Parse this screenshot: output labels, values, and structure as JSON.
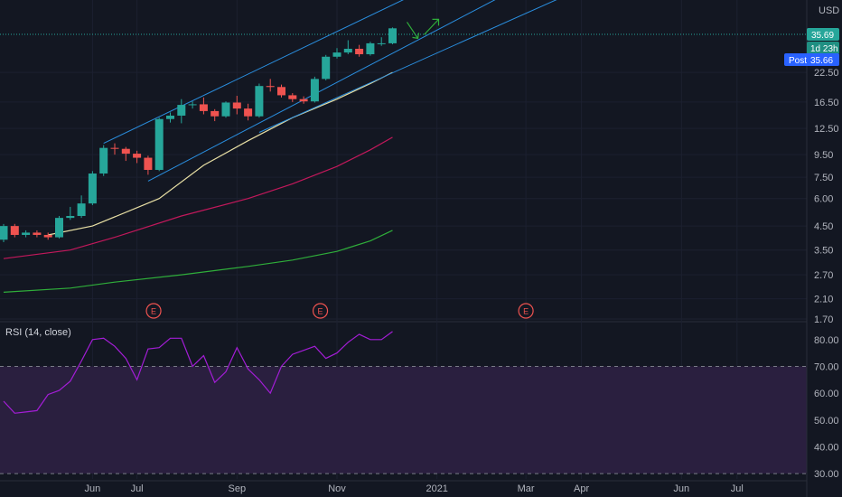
{
  "currency": "USD",
  "price_labels": {
    "last": "35.69",
    "countdown": "1d 23h",
    "post_prefix": "Post",
    "post_value": "35.66"
  },
  "earnings_marker": "E",
  "rsi_label": "RSI (14, close)",
  "colors": {
    "background": "#131722",
    "up": "#26a69a",
    "down": "#ef5350",
    "channel": "#2a8fe0",
    "ma_short": "#e8dfa4",
    "ma_mid": "#c2185b",
    "ma_long": "#2fae3a",
    "rsi_line": "#a31dd6",
    "rsi_band": "#2a1f3f"
  },
  "chart_data": [
    {
      "type": "candlestick",
      "scale": "log",
      "ylim": [
        1.7,
        48
      ],
      "y_ticks": [
        "1.70",
        "2.10",
        "2.70",
        "3.50",
        "4.50",
        "6.00",
        "7.50",
        "9.50",
        "12.50",
        "16.50",
        "22.50"
      ],
      "x_ticks": [
        "Jun",
        "Jul",
        "Sep",
        "Nov",
        "2021",
        "Mar",
        "Apr",
        "Jun",
        "Jul"
      ],
      "x_tick_weeks": [
        8,
        12,
        21,
        30,
        39,
        47,
        52,
        61,
        66
      ],
      "candles": [
        {
          "week": 0,
          "open": 3.9,
          "high": 4.6,
          "low": 3.8,
          "close": 4.5
        },
        {
          "week": 1,
          "open": 4.5,
          "high": 4.6,
          "low": 4.0,
          "close": 4.1
        },
        {
          "week": 2,
          "open": 4.1,
          "high": 4.3,
          "low": 4.0,
          "close": 4.2
        },
        {
          "week": 3,
          "open": 4.2,
          "high": 4.3,
          "low": 4.0,
          "close": 4.1
        },
        {
          "week": 4,
          "open": 4.1,
          "high": 4.2,
          "low": 3.9,
          "close": 4.0
        },
        {
          "week": 5,
          "open": 4.0,
          "high": 5.0,
          "low": 3.95,
          "close": 4.9
        },
        {
          "week": 6,
          "open": 4.9,
          "high": 5.5,
          "low": 4.8,
          "close": 5.0
        },
        {
          "week": 7,
          "open": 5.0,
          "high": 6.2,
          "low": 4.9,
          "close": 5.7
        },
        {
          "week": 8,
          "open": 5.7,
          "high": 8.0,
          "low": 5.6,
          "close": 7.8
        },
        {
          "week": 9,
          "open": 7.8,
          "high": 10.5,
          "low": 7.6,
          "close": 10.2
        },
        {
          "week": 10,
          "open": 10.2,
          "high": 10.7,
          "low": 9.5,
          "close": 10.1
        },
        {
          "week": 11,
          "open": 10.1,
          "high": 10.3,
          "low": 8.9,
          "close": 9.6
        },
        {
          "week": 12,
          "open": 9.6,
          "high": 9.9,
          "low": 8.7,
          "close": 9.2
        },
        {
          "week": 13,
          "open": 9.2,
          "high": 9.4,
          "low": 7.7,
          "close": 8.1
        },
        {
          "week": 14,
          "open": 8.1,
          "high": 14.0,
          "low": 8.0,
          "close": 13.8
        },
        {
          "week": 15,
          "open": 13.8,
          "high": 14.8,
          "low": 13.3,
          "close": 14.3
        },
        {
          "week": 16,
          "open": 14.3,
          "high": 17.0,
          "low": 13.2,
          "close": 16.0
        },
        {
          "week": 17,
          "open": 16.0,
          "high": 16.6,
          "low": 15.4,
          "close": 16.1
        },
        {
          "week": 18,
          "open": 16.1,
          "high": 17.3,
          "low": 14.5,
          "close": 15.0
        },
        {
          "week": 19,
          "open": 15.0,
          "high": 15.3,
          "low": 13.5,
          "close": 14.2
        },
        {
          "week": 20,
          "open": 14.2,
          "high": 16.6,
          "low": 14.0,
          "close": 16.4
        },
        {
          "week": 21,
          "open": 16.4,
          "high": 17.6,
          "low": 14.5,
          "close": 15.4
        },
        {
          "week": 22,
          "open": 15.4,
          "high": 16.2,
          "low": 13.6,
          "close": 14.2
        },
        {
          "week": 23,
          "open": 14.2,
          "high": 20.0,
          "low": 14.0,
          "close": 19.5
        },
        {
          "week": 24,
          "open": 19.5,
          "high": 21.0,
          "low": 18.4,
          "close": 19.3
        },
        {
          "week": 25,
          "open": 19.3,
          "high": 19.8,
          "low": 17.3,
          "close": 17.7
        },
        {
          "week": 26,
          "open": 17.7,
          "high": 18.1,
          "low": 16.5,
          "close": 17.0
        },
        {
          "week": 27,
          "open": 17.0,
          "high": 17.5,
          "low": 16.2,
          "close": 16.6
        },
        {
          "week": 28,
          "open": 16.6,
          "high": 21.5,
          "low": 16.4,
          "close": 21.0
        },
        {
          "week": 29,
          "open": 21.0,
          "high": 27.0,
          "low": 20.7,
          "close": 26.5
        },
        {
          "week": 30,
          "open": 26.5,
          "high": 29.0,
          "low": 26.0,
          "close": 27.7
        },
        {
          "week": 31,
          "open": 27.7,
          "high": 31.5,
          "low": 27.2,
          "close": 28.8
        },
        {
          "week": 32,
          "open": 28.8,
          "high": 30.0,
          "low": 26.5,
          "close": 27.2
        },
        {
          "week": 33,
          "open": 27.2,
          "high": 31.0,
          "low": 26.8,
          "close": 30.5
        },
        {
          "week": 34,
          "open": 30.5,
          "high": 32.5,
          "low": 29.7,
          "close": 30.5
        },
        {
          "week": 35,
          "open": 30.5,
          "high": 36.0,
          "low": 30.2,
          "close": 35.69
        }
      ],
      "overlays": [
        {
          "name": "ma_short",
          "points": [
            [
              4,
              4.1
            ],
            [
              8,
              4.5
            ],
            [
              14,
              6.0
            ],
            [
              18,
              8.5
            ],
            [
              22,
              11.0
            ],
            [
              26,
              14.0
            ],
            [
              30,
              17.0
            ],
            [
              33,
              20.0
            ],
            [
              35,
              22.5
            ]
          ]
        },
        {
          "name": "ma_mid",
          "points": [
            [
              0,
              3.2
            ],
            [
              6,
              3.5
            ],
            [
              10,
              4.0
            ],
            [
              16,
              5.0
            ],
            [
              22,
              6.0
            ],
            [
              26,
              7.0
            ],
            [
              30,
              8.4
            ],
            [
              33,
              10.0
            ],
            [
              35,
              11.4
            ]
          ]
        },
        {
          "name": "ma_long",
          "points": [
            [
              0,
              2.25
            ],
            [
              6,
              2.35
            ],
            [
              10,
              2.5
            ],
            [
              16,
              2.7
            ],
            [
              22,
              2.95
            ],
            [
              26,
              3.15
            ],
            [
              30,
              3.45
            ],
            [
              33,
              3.85
            ],
            [
              35,
              4.3
            ]
          ]
        }
      ],
      "channel_lines": [
        {
          "from": [
            9,
            10.7
          ],
          "to": [
            39,
            57.0
          ]
        },
        {
          "from": [
            13,
            7.2
          ],
          "to": [
            47,
            57.0
          ]
        },
        {
          "from": [
            23,
            12.0
          ],
          "to": [
            53,
            57.0
          ]
        }
      ],
      "earnings_weeks": [
        13.5,
        28.5,
        47
      ]
    },
    {
      "type": "line",
      "title": "RSI (14, close)",
      "ylim": [
        28,
        86
      ],
      "y_ticks": [
        "80.00",
        "70.00",
        "60.00",
        "50.00",
        "40.00",
        "30.00"
      ],
      "bands": [
        70,
        30
      ],
      "x": [
        0,
        1,
        2,
        3,
        4,
        5,
        6,
        7,
        8,
        9,
        10,
        11,
        12,
        13,
        14,
        15,
        16,
        17,
        18,
        19,
        20,
        21,
        22,
        23,
        24,
        25,
        26,
        27,
        28,
        29,
        30,
        31,
        32,
        33,
        34,
        35
      ],
      "values": [
        57,
        52.5,
        53,
        53.5,
        59.5,
        61,
        64.5,
        72,
        80,
        80.5,
        77.5,
        73,
        65,
        76.5,
        77,
        80.5,
        80.5,
        70,
        74,
        64,
        68,
        77,
        69,
        65,
        60,
        70,
        74.5,
        76,
        77.5,
        73,
        75,
        79,
        82,
        80,
        80,
        83
      ]
    }
  ]
}
